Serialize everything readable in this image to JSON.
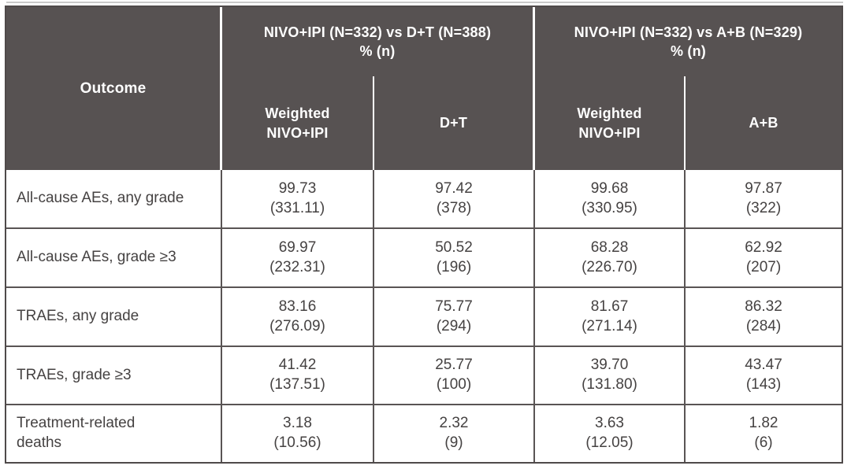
{
  "colors": {
    "header_bg": "#575252",
    "header_text": "#ffffff",
    "body_text": "#454242",
    "grid_line": "#595454",
    "outer_border": "#4f4a4a",
    "top_rule": "#c9c9c9"
  },
  "header": {
    "outcome": "Outcome",
    "groups": [
      {
        "title": "NIVO+IPI (N=332) vs D+T (N=388)",
        "unit": "% (n)"
      },
      {
        "title": "NIVO+IPI (N=332) vs A+B (N=329)",
        "unit": "% (n)"
      }
    ],
    "subcolumns": [
      "Weighted\nNIVO+IPI",
      "D+T",
      "Weighted\nNIVO+IPI",
      "A+B"
    ]
  },
  "rows": [
    {
      "outcome": "All-cause AEs, any grade",
      "cells": [
        {
          "pct": "99.73",
          "n": "(331.11)"
        },
        {
          "pct": "97.42",
          "n": "(378)"
        },
        {
          "pct": "99.68",
          "n": "(330.95)"
        },
        {
          "pct": "97.87",
          "n": "(322)"
        }
      ]
    },
    {
      "outcome": "All-cause AEs, grade ≥3",
      "cells": [
        {
          "pct": "69.97",
          "n": "(232.31)"
        },
        {
          "pct": "50.52",
          "n": "(196)"
        },
        {
          "pct": "68.28",
          "n": "(226.70)"
        },
        {
          "pct": "62.92",
          "n": "(207)"
        }
      ]
    },
    {
      "outcome": "TRAEs, any grade",
      "cells": [
        {
          "pct": "83.16",
          "n": "(276.09)"
        },
        {
          "pct": "75.77",
          "n": "(294)"
        },
        {
          "pct": "81.67",
          "n": "(271.14)"
        },
        {
          "pct": "86.32",
          "n": "(284)"
        }
      ]
    },
    {
      "outcome": "TRAEs, grade ≥3",
      "cells": [
        {
          "pct": "41.42",
          "n": "(137.51)"
        },
        {
          "pct": "25.77",
          "n": "(100)"
        },
        {
          "pct": "39.70",
          "n": "(131.80)"
        },
        {
          "pct": "43.47",
          "n": "(143)"
        }
      ]
    },
    {
      "outcome": "Treatment-related\ndeaths",
      "cells": [
        {
          "pct": "3.18",
          "n": "(10.56)"
        },
        {
          "pct": "2.32",
          "n": "(9)"
        },
        {
          "pct": "3.63",
          "n": "(12.05)"
        },
        {
          "pct": "1.82",
          "n": "(6)"
        }
      ]
    }
  ],
  "chart_data": {
    "type": "table",
    "title": "",
    "columns": [
      "Outcome",
      "NIVO+IPI (N=332) vs D+T (N=388) % (n) — Weighted NIVO+IPI",
      "NIVO+IPI (N=332) vs D+T (N=388) % (n) — D+T",
      "NIVO+IPI (N=332) vs A+B (N=329) % (n) — Weighted NIVO+IPI",
      "NIVO+IPI (N=332) vs A+B (N=329) % (n) — A+B"
    ],
    "rows": [
      [
        "All-cause AEs, any grade",
        "99.73 (331.11)",
        "97.42 (378)",
        "99.68 (330.95)",
        "97.87 (322)"
      ],
      [
        "All-cause AEs, grade ≥3",
        "69.97 (232.31)",
        "50.52 (196)",
        "68.28 (226.70)",
        "62.92 (207)"
      ],
      [
        "TRAEs, any grade",
        "83.16 (276.09)",
        "75.77 (294)",
        "81.67 (271.14)",
        "86.32 (284)"
      ],
      [
        "TRAEs, grade ≥3",
        "41.42 (137.51)",
        "25.77 (100)",
        "39.70 (131.80)",
        "43.47 (143)"
      ],
      [
        "Treatment-related deaths",
        "3.18 (10.56)",
        "2.32 (9)",
        "3.63 (12.05)",
        "1.82 (6)"
      ]
    ]
  }
}
